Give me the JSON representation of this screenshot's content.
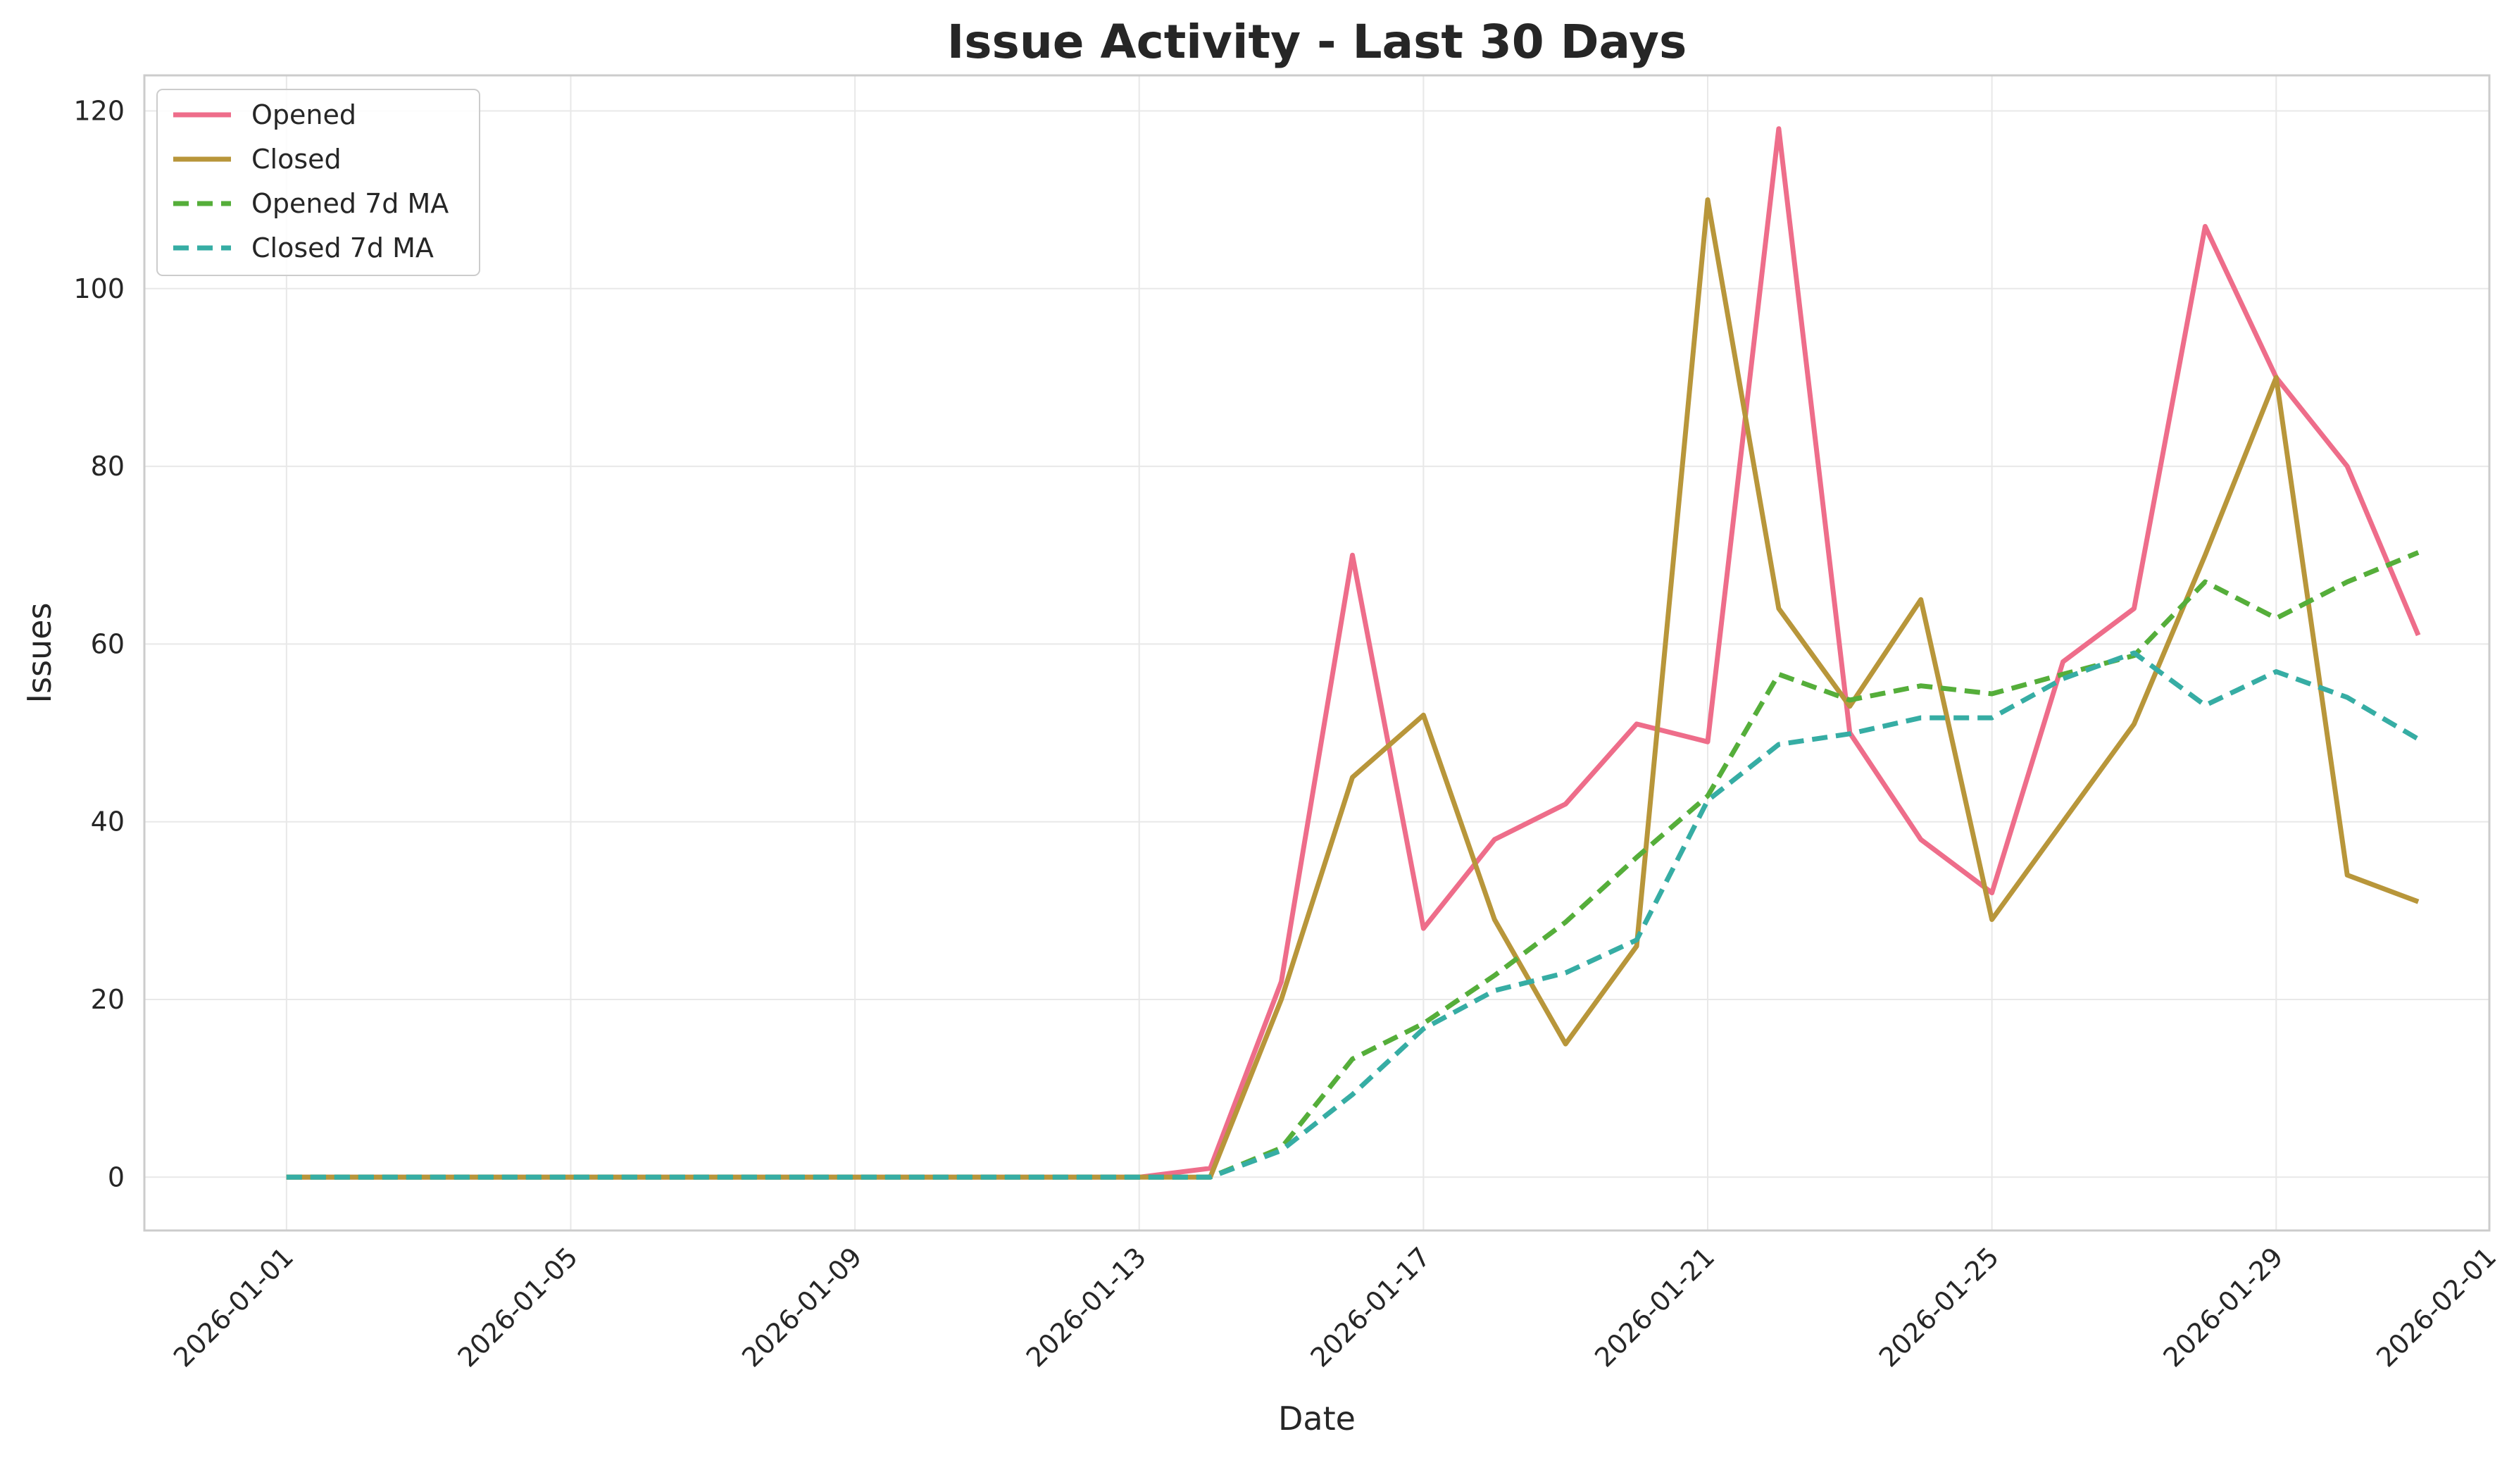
{
  "chart_data": {
    "type": "line",
    "title": "Issue Activity - Last 30 Days",
    "xlabel": "Date",
    "ylabel": "Issues",
    "x": [
      "2026-01-01",
      "2026-01-02",
      "2026-01-03",
      "2026-01-04",
      "2026-01-05",
      "2026-01-06",
      "2026-01-07",
      "2026-01-08",
      "2026-01-09",
      "2026-01-10",
      "2026-01-11",
      "2026-01-12",
      "2026-01-13",
      "2026-01-14",
      "2026-01-15",
      "2026-01-16",
      "2026-01-17",
      "2026-01-18",
      "2026-01-19",
      "2026-01-20",
      "2026-01-21",
      "2026-01-22",
      "2026-01-23",
      "2026-01-24",
      "2026-01-25",
      "2026-01-26",
      "2026-01-27",
      "2026-01-28",
      "2026-01-29",
      "2026-01-30",
      "2026-01-31"
    ],
    "x_ticks": [
      "2026-01-01",
      "2026-01-05",
      "2026-01-09",
      "2026-01-13",
      "2026-01-17",
      "2026-01-21",
      "2026-01-25",
      "2026-01-29",
      "2026-02-01"
    ],
    "y_ticks": [
      0,
      20,
      40,
      60,
      80,
      100,
      120
    ],
    "xlim": [
      "2025-12-30",
      "2026-02-01"
    ],
    "ylim": [
      -6,
      124
    ],
    "grid": true,
    "legend_position": "top-left",
    "series": [
      {
        "name": "Opened",
        "color": "#ee6d8a",
        "style": "solid",
        "values": [
          0,
          0,
          0,
          0,
          0,
          0,
          0,
          0,
          0,
          0,
          0,
          0,
          0,
          1,
          22,
          70,
          28,
          38,
          42,
          51,
          49,
          118,
          50,
          38,
          32,
          58,
          64,
          107,
          90,
          80,
          61
        ]
      },
      {
        "name": "Closed",
        "color": "#b8963a",
        "style": "solid",
        "values": [
          0,
          0,
          0,
          0,
          0,
          0,
          0,
          0,
          0,
          0,
          0,
          0,
          0,
          0,
          20,
          45,
          52,
          29,
          15,
          26,
          110,
          64,
          53,
          65,
          29,
          40,
          51,
          70,
          90,
          34,
          31
        ]
      },
      {
        "name": "Opened 7d MA",
        "color": "#55ae3a",
        "style": "dashed",
        "values": [
          0,
          0,
          0,
          0,
          0,
          0,
          0,
          0,
          0,
          0,
          0,
          0,
          0,
          0,
          3.3,
          13.3,
          17.3,
          22.7,
          28.7,
          36,
          42.9,
          56.6,
          53.7,
          55.3,
          54.4,
          56.6,
          58.7,
          67,
          62.9,
          67,
          70.3
        ]
      },
      {
        "name": "Closed 7d MA",
        "color": "#36ada4",
        "style": "dashed",
        "values": [
          0,
          0,
          0,
          0,
          0,
          0,
          0,
          0,
          0,
          0,
          0,
          0,
          0,
          0,
          3,
          9.3,
          16.7,
          21,
          23,
          26.7,
          42.4,
          48.7,
          49.9,
          51.7,
          51.7,
          56.1,
          59,
          53.1,
          56.9,
          54,
          49.3
        ]
      }
    ]
  }
}
